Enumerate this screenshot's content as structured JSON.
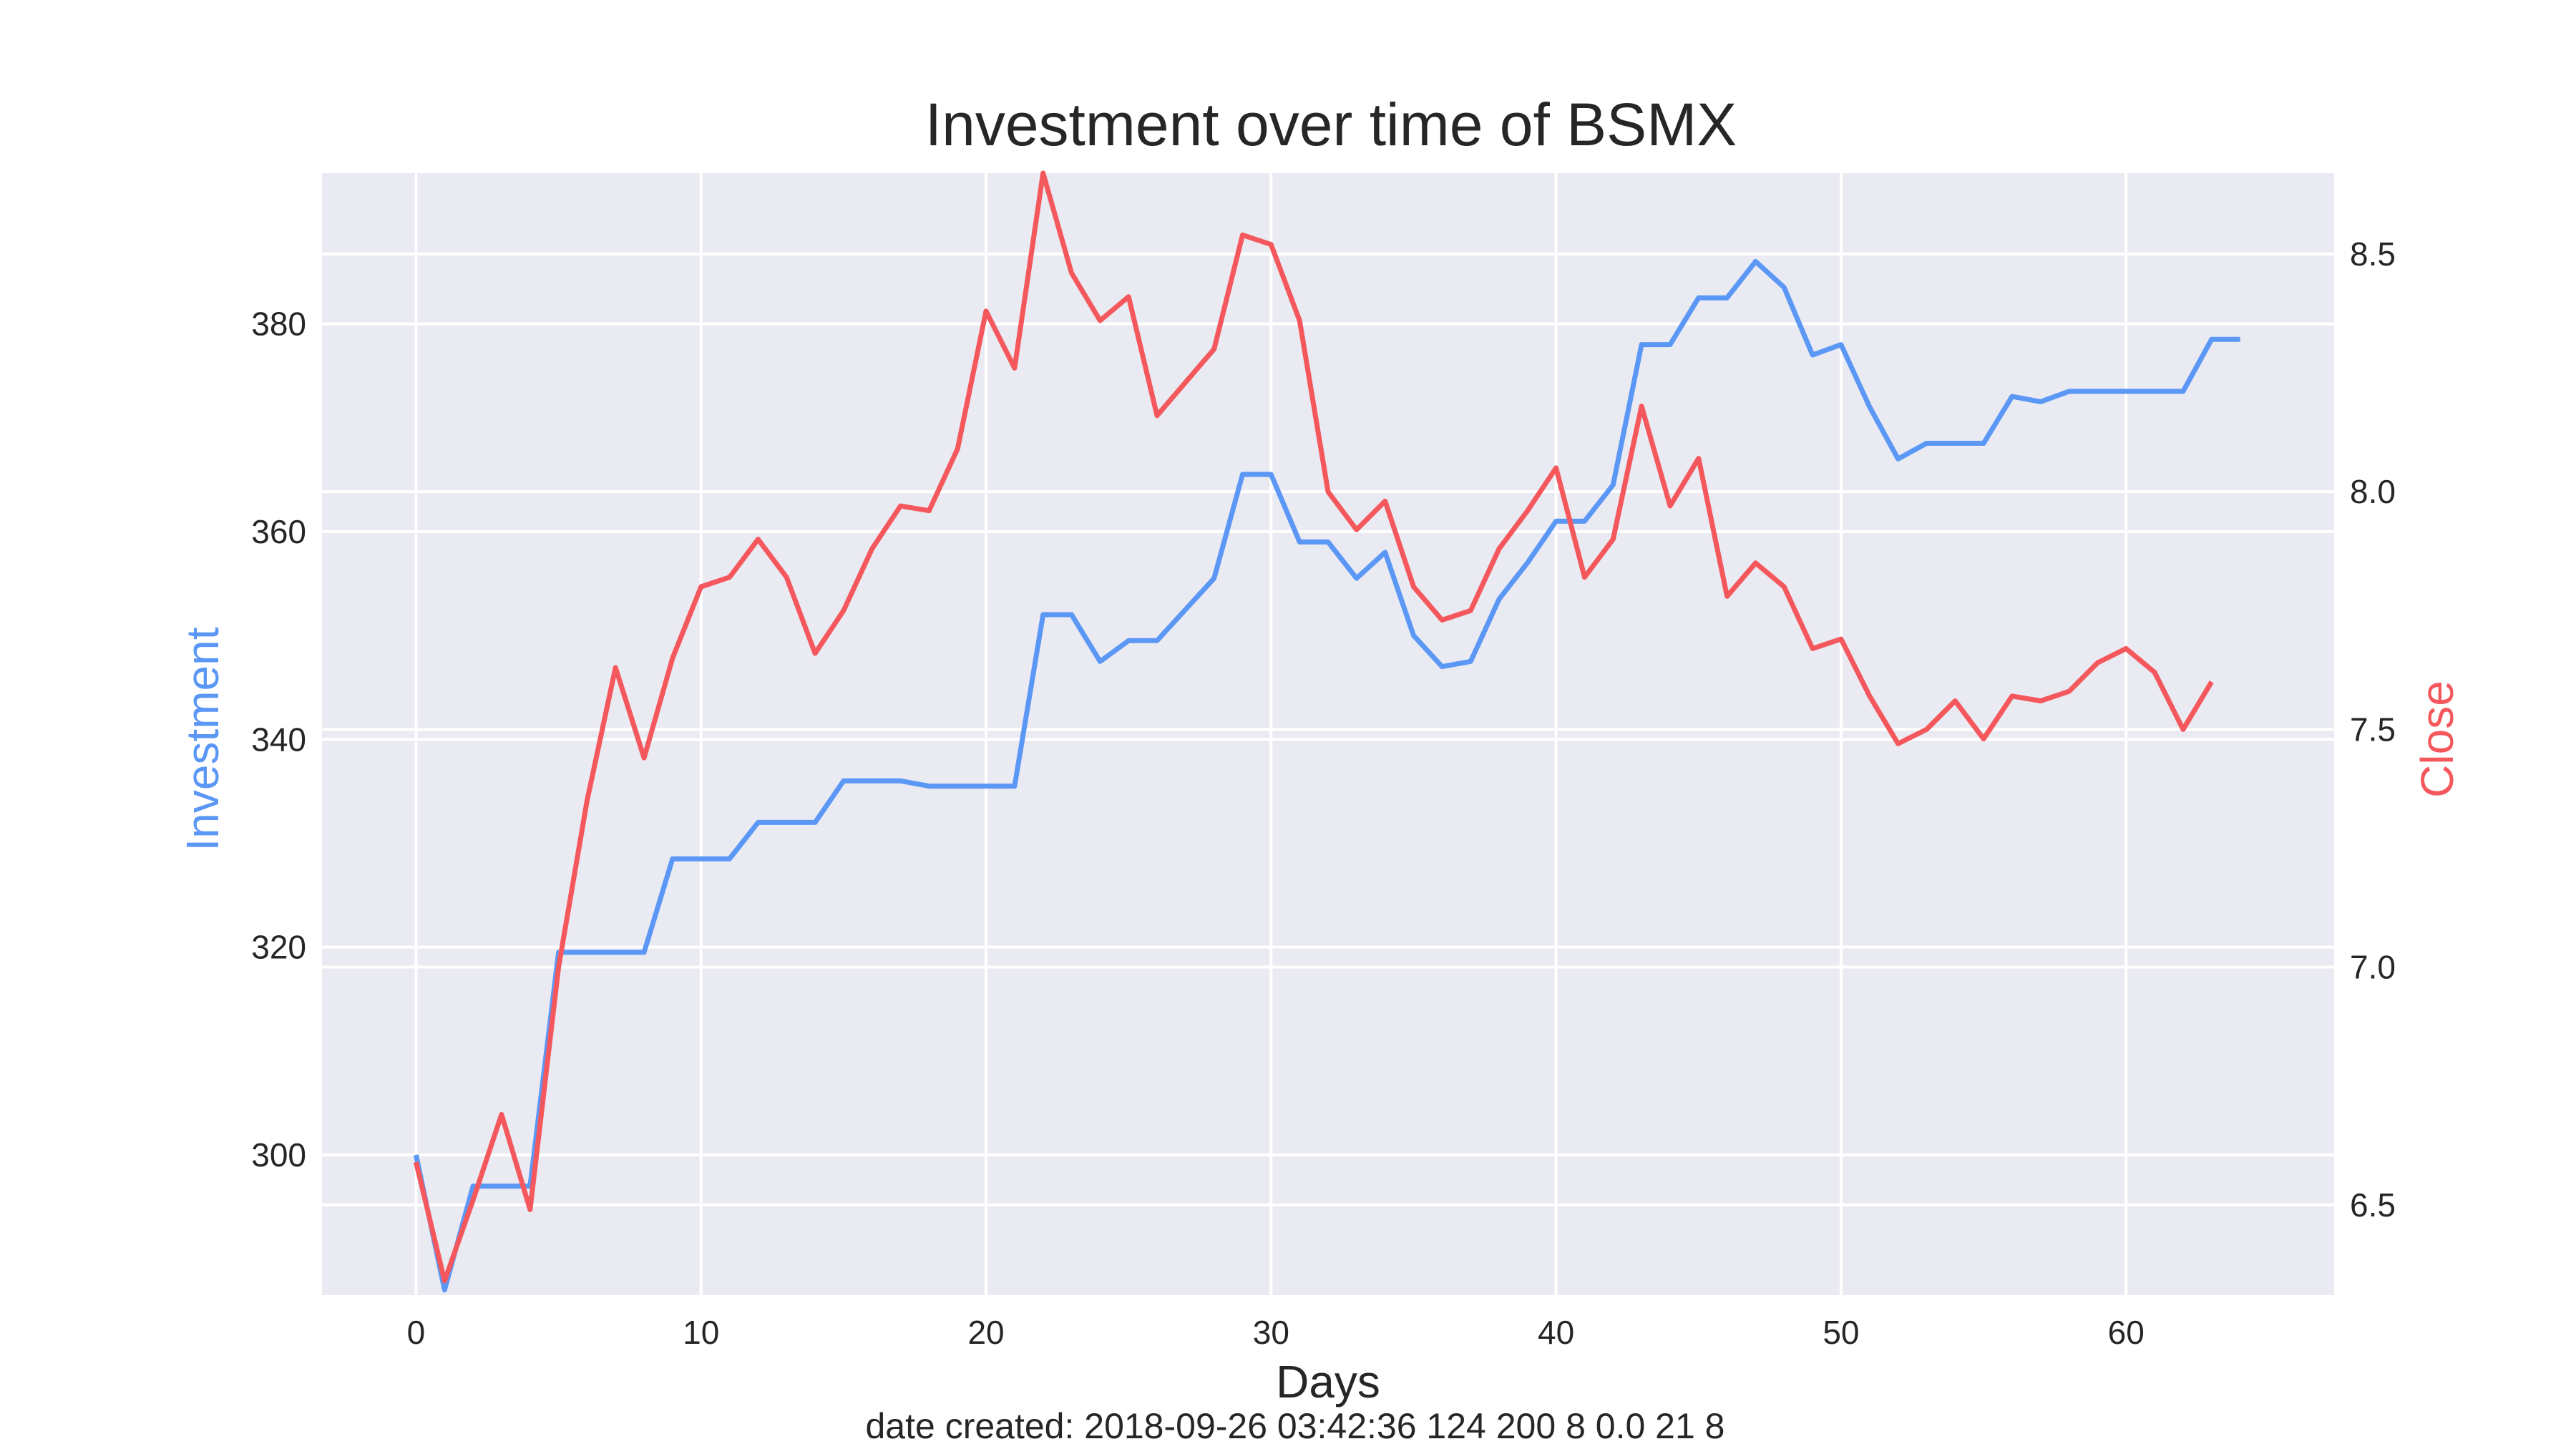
{
  "chart_data": {
    "type": "line",
    "title": "Investment over time of BSMX",
    "xlabel": "Days",
    "ylabel_left": "Investment",
    "ylabel_right": "Close",
    "footer": "date created: 2018-09-26 03:42:36 124 200 8 0.0 21 8",
    "xlim": [
      -3.3,
      67.3
    ],
    "ylim_left": [
      286.5,
      394.5
    ],
    "ylim_right": [
      6.31,
      8.67
    ],
    "xticks": [
      0,
      10,
      20,
      30,
      40,
      50,
      60
    ],
    "yticks_left": [
      300,
      320,
      340,
      360,
      380
    ],
    "yticks_right": [
      6.5,
      7.0,
      7.5,
      8.0,
      8.5
    ],
    "yticks_right_labels": [
      "6.5",
      "7.0",
      "7.5",
      "8.0",
      "8.5"
    ],
    "grid": true,
    "colors": {
      "investment": "#5b97f5",
      "close": "#f4585d",
      "background": "#eaeaf2",
      "grid": "#ffffff"
    },
    "series": [
      {
        "key": "investment",
        "axis": "left",
        "x": [
          0,
          1,
          2,
          3,
          4,
          5,
          6,
          7,
          8,
          9,
          10,
          11,
          12,
          13,
          14,
          15,
          16,
          17,
          18,
          19,
          20,
          21,
          22,
          23,
          24,
          25,
          26,
          27,
          28,
          29,
          30,
          31,
          32,
          33,
          34,
          35,
          36,
          37,
          38,
          39,
          40,
          41,
          42,
          43,
          44,
          45,
          46,
          47,
          48,
          49,
          50,
          51,
          52,
          53,
          54,
          55,
          56,
          57,
          58,
          59,
          60,
          61,
          62,
          63,
          64
        ],
        "values": [
          300.0,
          287.0,
          297.0,
          297.0,
          297.0,
          319.5,
          319.5,
          319.5,
          319.5,
          328.5,
          328.5,
          328.5,
          332.0,
          332.0,
          332.0,
          336.0,
          336.0,
          336.0,
          335.5,
          335.5,
          335.5,
          335.5,
          352.0,
          352.0,
          347.5,
          349.5,
          349.5,
          352.5,
          355.5,
          365.5,
          365.5,
          359.0,
          359.0,
          355.5,
          358.0,
          350.0,
          347.0,
          347.5,
          353.5,
          357.0,
          361.0,
          361.0,
          364.5,
          378.0,
          378.0,
          382.5,
          382.5,
          386.0,
          383.5,
          377.0,
          378.0,
          372.0,
          367.0,
          368.5,
          368.5,
          368.5,
          373.0,
          372.5,
          373.5,
          373.5,
          373.5,
          373.5,
          373.5,
          378.5,
          378.5
        ]
      },
      {
        "key": "close",
        "axis": "right",
        "x": [
          0,
          1,
          2,
          3,
          4,
          5,
          6,
          7,
          8,
          9,
          10,
          11,
          12,
          13,
          14,
          15,
          16,
          17,
          18,
          19,
          20,
          21,
          22,
          23,
          24,
          25,
          26,
          27,
          28,
          29,
          30,
          31,
          32,
          33,
          34,
          35,
          36,
          37,
          38,
          39,
          40,
          41,
          42,
          43,
          44,
          45,
          46,
          47,
          48,
          49,
          50,
          51,
          52,
          53,
          54,
          55,
          56,
          57,
          58,
          59,
          60,
          61,
          62,
          63
        ],
        "values": [
          6.59,
          6.34,
          6.51,
          6.69,
          6.49,
          7.0,
          7.35,
          7.63,
          7.44,
          7.65,
          7.8,
          7.82,
          7.9,
          7.82,
          7.66,
          7.75,
          7.88,
          7.97,
          7.96,
          8.09,
          8.38,
          8.26,
          8.67,
          8.46,
          8.36,
          8.41,
          8.16,
          8.23,
          8.3,
          8.54,
          8.52,
          8.36,
          8.0,
          7.92,
          7.98,
          7.8,
          7.73,
          7.75,
          7.88,
          7.96,
          8.05,
          7.82,
          7.9,
          8.18,
          7.97,
          8.07,
          7.78,
          7.85,
          7.8,
          7.67,
          7.69,
          7.57,
          7.47,
          7.5,
          7.56,
          7.48,
          7.57,
          7.56,
          7.58,
          7.64,
          7.67,
          7.62,
          7.5,
          7.6
        ]
      }
    ]
  }
}
